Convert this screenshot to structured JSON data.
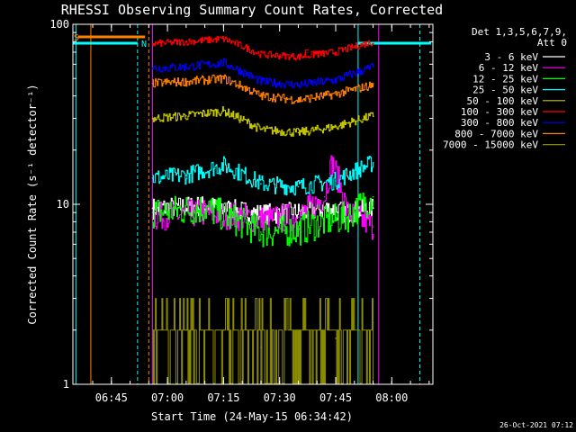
{
  "chart_data": {
    "type": "line",
    "title": "RHESSI Observing Summary Count Rates, Corrected",
    "xlabel": "Start Time (24-May-15 06:34:42)",
    "ylabel": "Corrected Count Rate (s⁻¹ detector⁻¹)",
    "y_scale": "log",
    "ylim": [
      1,
      100
    ],
    "xlim": [
      "06:34:42",
      "08:11:00"
    ],
    "x_ticks": [
      "06:45",
      "07:00",
      "07:15",
      "07:30",
      "07:45",
      "08:00"
    ],
    "y_ticks": [
      "1",
      "10",
      "100"
    ],
    "grid": false,
    "legend_position": "top-right",
    "legend_header": [
      "Det 1,3,5,6,7,9,",
      "Att 0"
    ],
    "annotations": {
      "flare_flag": "F",
      "saa_flag": "S",
      "night_flag": "N"
    },
    "timestamp": "26-Oct-2021 07:12",
    "series": [
      {
        "name": "3 - 6 keV",
        "color": "#ffffff",
        "x": [
          "06:56",
          "07:10",
          "07:25",
          "07:35",
          "07:42",
          "07:48",
          "07:55"
        ],
        "y": [
          9.5,
          9.8,
          8.8,
          9.0,
          9.5,
          9.0,
          9.5
        ]
      },
      {
        "name": "6 - 12 keV",
        "color": "#ff00ff",
        "x": [
          "06:56",
          "07:10",
          "07:25",
          "07:35",
          "07:42",
          "07:44",
          "07:48",
          "07:55"
        ],
        "y": [
          8.5,
          9.0,
          8.2,
          8.5,
          11.0,
          17.0,
          9.0,
          7.5
        ]
      },
      {
        "name": "12 - 25 keV",
        "color": "#00ff00",
        "x": [
          "06:56",
          "07:10",
          "07:25",
          "07:35",
          "07:42",
          "07:48",
          "07:55"
        ],
        "y": [
          9.0,
          9.5,
          7.0,
          7.2,
          8.0,
          8.5,
          11.0
        ]
      },
      {
        "name": "25 - 50 keV",
        "color": "#00ffff",
        "x": [
          "06:56",
          "07:05",
          "07:15",
          "07:25",
          "07:35",
          "07:45",
          "07:55"
        ],
        "y": [
          14.0,
          14.5,
          16.5,
          13.0,
          12.5,
          13.5,
          17.0
        ]
      },
      {
        "name": "50 - 100 keV",
        "color": "#c8c800",
        "x": [
          "06:56",
          "07:05",
          "07:15",
          "07:25",
          "07:35",
          "07:45",
          "07:55"
        ],
        "y": [
          30,
          31,
          33,
          26,
          25,
          27,
          31
        ]
      },
      {
        "name": "100 - 300 keV",
        "color": "#ff0000",
        "x": [
          "06:56",
          "07:05",
          "07:15",
          "07:25",
          "07:35",
          "07:45",
          "07:55"
        ],
        "y": [
          78,
          80,
          83,
          68,
          66,
          70,
          80
        ]
      },
      {
        "name": "300 - 800 keV",
        "color": "#0000ff",
        "x": [
          "06:56",
          "07:05",
          "07:15",
          "07:25",
          "07:35",
          "07:45",
          "07:55"
        ],
        "y": [
          57,
          58,
          61,
          48,
          46,
          49,
          58
        ]
      },
      {
        "name": "800 - 7000 keV",
        "color": "#ff8000",
        "x": [
          "06:56",
          "07:05",
          "07:15",
          "07:25",
          "07:35",
          "07:45",
          "07:55"
        ],
        "y": [
          47,
          48,
          50,
          40,
          38,
          41,
          46
        ]
      },
      {
        "name": "7000 - 15000 keV",
        "color": "#8c8c00",
        "x": [
          "06:56",
          "07:05",
          "07:15",
          "07:25",
          "07:35",
          "07:45",
          "07:55"
        ],
        "y": [
          1.8,
          2.0,
          2.0,
          1.6,
          1.7,
          1.8,
          2.2
        ]
      }
    ]
  }
}
